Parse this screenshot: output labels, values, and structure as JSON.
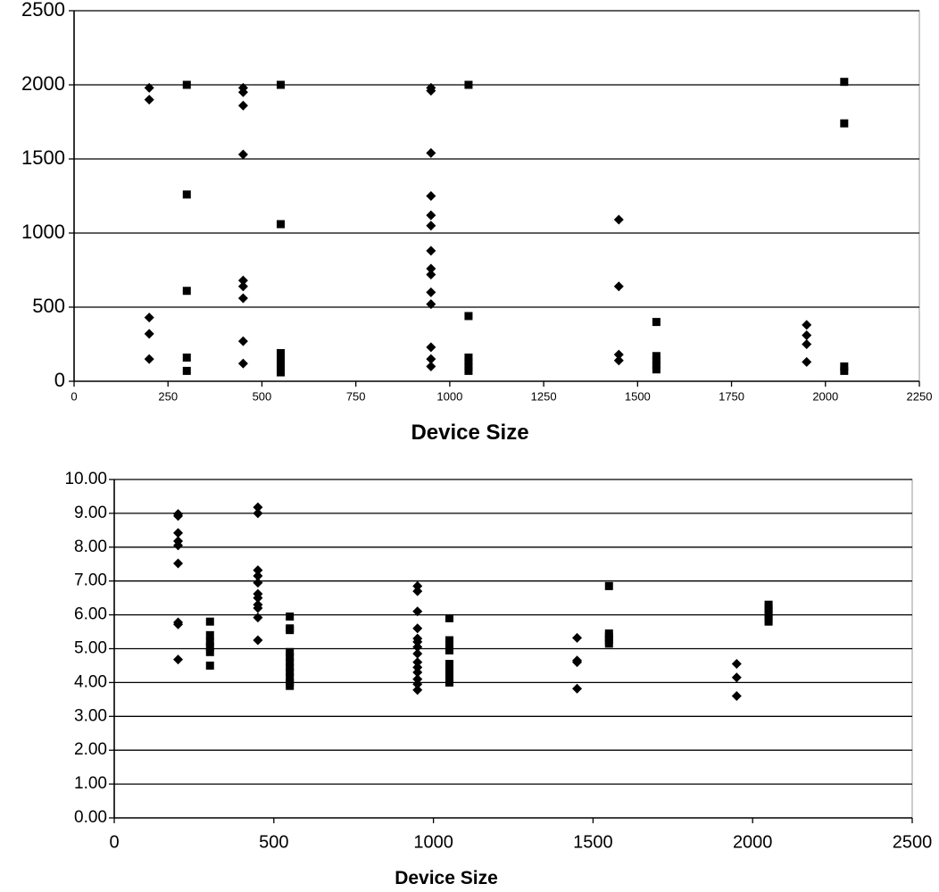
{
  "chart_data": [
    {
      "type": "scatter",
      "title": "",
      "xlabel": "Device Size",
      "ylabel": "",
      "xlim": [
        0,
        2250
      ],
      "ylim": [
        0,
        2500
      ],
      "x_ticks": [
        "0",
        "250",
        "500",
        "750",
        "1000",
        "1250",
        "1500",
        "1750",
        "2000",
        "2250"
      ],
      "y_ticks": [
        "0",
        "500",
        "1000",
        "1500",
        "2000",
        "2500"
      ],
      "grid": "horizontal",
      "legend": "none",
      "series": [
        {
          "marker": "diamond",
          "color": "#000000",
          "points": [
            [
              200,
              1980
            ],
            [
              200,
              1900
            ],
            [
              200,
              430
            ],
            [
              200,
              320
            ],
            [
              200,
              150
            ],
            [
              450,
              1980
            ],
            [
              450,
              1950
            ],
            [
              450,
              1860
            ],
            [
              450,
              1530
            ],
            [
              450,
              680
            ],
            [
              450,
              640
            ],
            [
              450,
              560
            ],
            [
              450,
              270
            ],
            [
              450,
              120
            ],
            [
              950,
              1980
            ],
            [
              950,
              1960
            ],
            [
              950,
              1540
            ],
            [
              950,
              1250
            ],
            [
              950,
              1120
            ],
            [
              950,
              1050
            ],
            [
              950,
              880
            ],
            [
              950,
              760
            ],
            [
              950,
              720
            ],
            [
              950,
              600
            ],
            [
              950,
              520
            ],
            [
              950,
              230
            ],
            [
              950,
              150
            ],
            [
              950,
              100
            ],
            [
              1450,
              1090
            ],
            [
              1450,
              640
            ],
            [
              1450,
              180
            ],
            [
              1450,
              140
            ],
            [
              1950,
              380
            ],
            [
              1950,
              310
            ],
            [
              1950,
              250
            ],
            [
              1950,
              130
            ]
          ]
        },
        {
          "marker": "square",
          "color": "#000000",
          "points": [
            [
              300,
              2000
            ],
            [
              300,
              1260
            ],
            [
              300,
              610
            ],
            [
              300,
              160
            ],
            [
              300,
              70
            ],
            [
              550,
              2000
            ],
            [
              550,
              1060
            ],
            [
              550,
              190
            ],
            [
              550,
              150
            ],
            [
              550,
              120
            ],
            [
              550,
              90
            ],
            [
              550,
              60
            ],
            [
              1050,
              2000
            ],
            [
              1050,
              440
            ],
            [
              1050,
              160
            ],
            [
              1050,
              130
            ],
            [
              1050,
              100
            ],
            [
              1050,
              70
            ],
            [
              1550,
              400
            ],
            [
              1550,
              170
            ],
            [
              1550,
              140
            ],
            [
              1550,
              110
            ],
            [
              1550,
              80
            ],
            [
              2050,
              2020
            ],
            [
              2050,
              1740
            ],
            [
              2050,
              100
            ],
            [
              2050,
              70
            ]
          ]
        }
      ]
    },
    {
      "type": "scatter",
      "title": "",
      "xlabel": "Device Size",
      "ylabel": "",
      "xlim": [
        0,
        2500
      ],
      "ylim": [
        0,
        10
      ],
      "x_ticks": [
        "0",
        "500",
        "1000",
        "1500",
        "2000",
        "2500"
      ],
      "y_ticks": [
        "0.00",
        "1.00",
        "2.00",
        "3.00",
        "4.00",
        "5.00",
        "6.00",
        "7.00",
        "8.00",
        "9.00",
        "10.00"
      ],
      "grid": "horizontal",
      "legend": "none",
      "series": [
        {
          "marker": "diamond",
          "color": "#000000",
          "points": [
            [
              200,
              8.98
            ],
            [
              200,
              8.92
            ],
            [
              200,
              8.42
            ],
            [
              200,
              8.18
            ],
            [
              200,
              8.05
            ],
            [
              200,
              7.52
            ],
            [
              200,
              5.78
            ],
            [
              200,
              5.72
            ],
            [
              200,
              4.68
            ],
            [
              450,
              9.18
            ],
            [
              450,
              9.0
            ],
            [
              450,
              7.32
            ],
            [
              450,
              7.15
            ],
            [
              450,
              6.95
            ],
            [
              450,
              6.62
            ],
            [
              450,
              6.5
            ],
            [
              450,
              6.3
            ],
            [
              450,
              6.2
            ],
            [
              450,
              5.92
            ],
            [
              450,
              5.25
            ],
            [
              950,
              6.85
            ],
            [
              950,
              6.7
            ],
            [
              950,
              6.1
            ],
            [
              950,
              5.6
            ],
            [
              950,
              5.3
            ],
            [
              950,
              5.2
            ],
            [
              950,
              5.05
            ],
            [
              950,
              4.85
            ],
            [
              950,
              4.6
            ],
            [
              950,
              4.45
            ],
            [
              950,
              4.3
            ],
            [
              950,
              4.1
            ],
            [
              950,
              3.95
            ],
            [
              950,
              3.78
            ],
            [
              1450,
              5.32
            ],
            [
              1450,
              4.65
            ],
            [
              1450,
              4.6
            ],
            [
              1450,
              3.82
            ],
            [
              1950,
              4.55
            ],
            [
              1950,
              4.15
            ],
            [
              1950,
              3.6
            ]
          ]
        },
        {
          "marker": "square",
          "color": "#000000",
          "points": [
            [
              300,
              5.8
            ],
            [
              300,
              5.4
            ],
            [
              300,
              5.2
            ],
            [
              300,
              5.05
            ],
            [
              300,
              4.9
            ],
            [
              300,
              4.5
            ],
            [
              550,
              5.95
            ],
            [
              550,
              5.6
            ],
            [
              550,
              5.55
            ],
            [
              550,
              4.9
            ],
            [
              550,
              4.75
            ],
            [
              550,
              4.6
            ],
            [
              550,
              4.45
            ],
            [
              550,
              4.3
            ],
            [
              550,
              4.15
            ],
            [
              550,
              4.0
            ],
            [
              550,
              3.9
            ],
            [
              1050,
              5.9
            ],
            [
              1050,
              5.25
            ],
            [
              1050,
              5.1
            ],
            [
              1050,
              4.95
            ],
            [
              1050,
              4.55
            ],
            [
              1050,
              4.4
            ],
            [
              1050,
              4.3
            ],
            [
              1050,
              4.15
            ],
            [
              1050,
              4.0
            ],
            [
              1550,
              6.85
            ],
            [
              1550,
              5.45
            ],
            [
              1550,
              5.35
            ],
            [
              1550,
              5.25
            ],
            [
              1550,
              5.15
            ],
            [
              2050,
              6.3
            ],
            [
              2050,
              6.2
            ],
            [
              2050,
              6.1
            ],
            [
              2050,
              6.0
            ],
            [
              2050,
              5.9
            ],
            [
              2050,
              5.8
            ]
          ]
        }
      ]
    }
  ]
}
